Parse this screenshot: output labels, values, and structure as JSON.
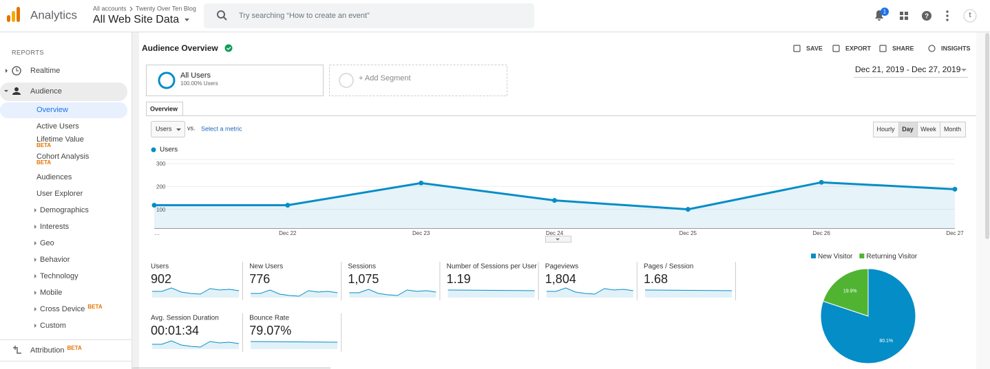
{
  "header": {
    "product": "Analytics",
    "account_path": [
      "All accounts",
      "Twenty Over Ten Blog"
    ],
    "view": "All Web Site Data",
    "search_placeholder": "Try searching “How to create an event”",
    "notifications": "1",
    "avatar": "t"
  },
  "sidebar": {
    "section": "REPORTS",
    "items": [
      {
        "label": "Realtime"
      },
      {
        "label": "Audience"
      },
      {
        "label": "Overview"
      },
      {
        "label": "Active Users"
      },
      {
        "label": "Lifetime Value",
        "badge": "BETA"
      },
      {
        "label": "Cohort Analysis",
        "badge": "BETA"
      },
      {
        "label": "Audiences"
      },
      {
        "label": "User Explorer"
      },
      {
        "label": "Demographics"
      },
      {
        "label": "Interests"
      },
      {
        "label": "Geo"
      },
      {
        "label": "Behavior"
      },
      {
        "label": "Technology"
      },
      {
        "label": "Mobile"
      },
      {
        "label": "Cross Device",
        "badge": "BETA"
      },
      {
        "label": "Custom"
      },
      {
        "label": "Attribution",
        "badge": "BETA"
      }
    ]
  },
  "page": {
    "title": "Audience Overview",
    "actions": [
      "SAVE",
      "EXPORT",
      "SHARE",
      "INSIGHTS"
    ],
    "segment": {
      "name": "All Users",
      "share": "100.00% Users"
    },
    "add_segment": "+ Add Segment",
    "date_range": "Dec 21, 2019 - Dec 27, 2019",
    "tab": "Overview",
    "metric": "Users",
    "vs": "vs.",
    "compare": "Select a metric",
    "intervals": [
      "Hourly",
      "Day",
      "Week",
      "Month"
    ]
  },
  "chart_data": [
    {
      "type": "line",
      "categories": [
        "…",
        "Dec 22",
        "Dec 23",
        "Dec 24",
        "Dec 25",
        "Dec 26",
        "Dec 27"
      ],
      "series": [
        {
          "name": "Users",
          "color": "#058dc7",
          "values": [
            118,
            118,
            215,
            139,
            100,
            218,
            188
          ]
        }
      ],
      "ylim": [
        18,
        318
      ],
      "yticks": [
        100,
        200,
        300
      ],
      "grid": true
    },
    {
      "type": "pie",
      "categories": [
        "New Visitor",
        "Returning Visitor"
      ],
      "colors": [
        "#058dc7",
        "#50b432"
      ],
      "values": [
        80.1,
        19.9
      ],
      "value_labels": [
        "80.1%",
        "19.9%"
      ]
    }
  ],
  "metrics": [
    {
      "label": "Users",
      "value": "902"
    },
    {
      "label": "New Users",
      "value": "776"
    },
    {
      "label": "Sessions",
      "value": "1,075"
    },
    {
      "label": "Number of Sessions per User",
      "value": "1.19"
    },
    {
      "label": "Pageviews",
      "value": "1,804"
    },
    {
      "label": "Pages / Session",
      "value": "1.68"
    },
    {
      "label": "Avg. Session Duration",
      "value": "00:01:34"
    },
    {
      "label": "Bounce Rate",
      "value": "79.07%"
    }
  ]
}
